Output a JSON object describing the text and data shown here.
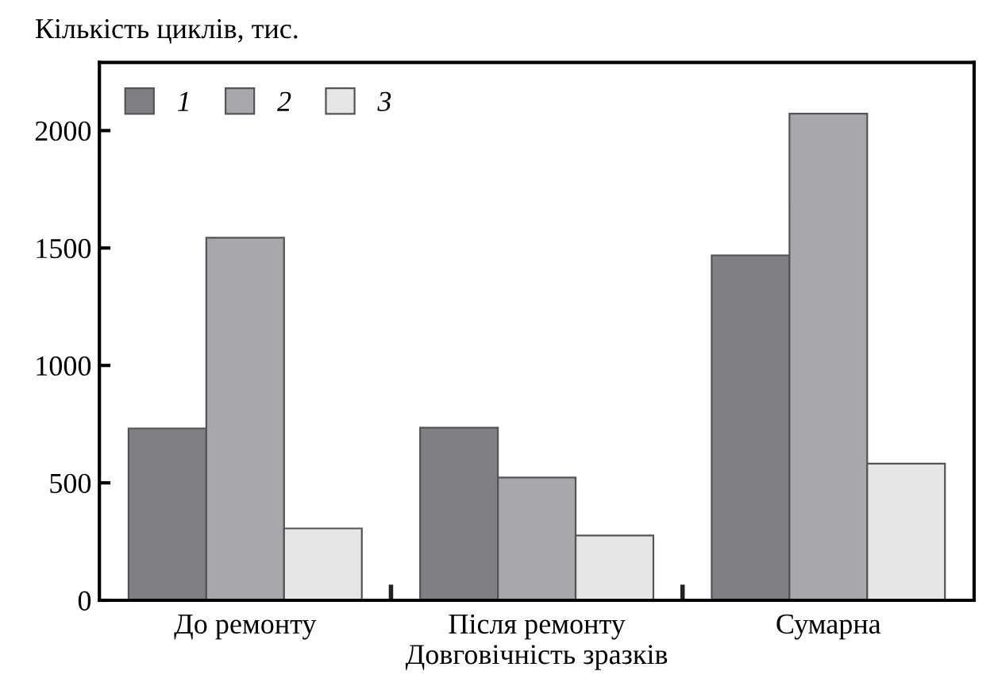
{
  "chart_data": {
    "type": "bar",
    "ylabel": "Кількість циклів, тис.",
    "xlabel": "Довговічність зразків",
    "categories": [
      "До ремонту",
      "Після ремонту",
      "Сумарна"
    ],
    "series": [
      {
        "name": "1",
        "color": "#808084",
        "values": [
          732,
          735,
          1469
        ]
      },
      {
        "name": "2",
        "color": "#a7a8ab",
        "values": [
          1544,
          523,
          2072
        ]
      },
      {
        "name": "3",
        "color": "#e5e6e8",
        "values": [
          306,
          276,
          582
        ]
      }
    ],
    "ylim": [
      0,
      2290
    ],
    "yticks": [
      0,
      500,
      1000,
      1500,
      2000
    ],
    "grid": false,
    "legend": "top left"
  }
}
